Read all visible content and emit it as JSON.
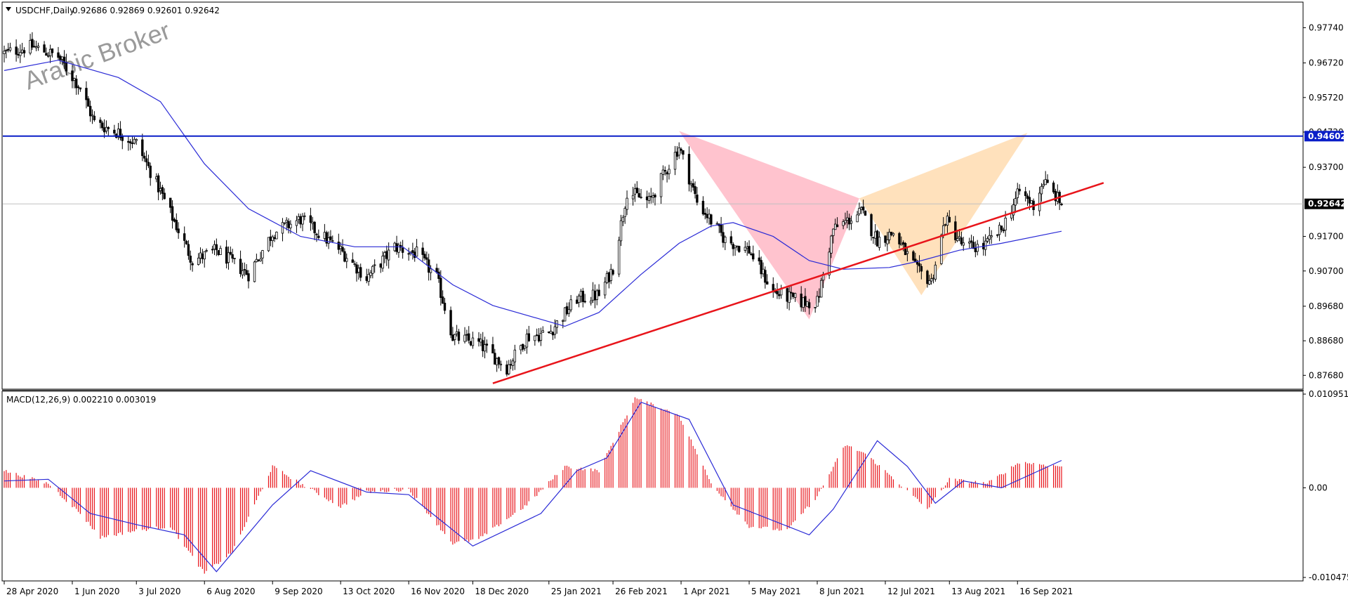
{
  "header": {
    "symbol": "USDCHF,Daily",
    "ohlc": "0.92686 0.92869 0.92601 0.92642"
  },
  "watermark": "Arabic Broker",
  "macd_header": "MACD(12,26,9) 0.002210 0.003019",
  "colors": {
    "background": "#ffffff",
    "candle": "#000000",
    "ma": "#2a2ad6",
    "resistance": "#0a1ec8",
    "trendline": "#e8141a",
    "pattern_bear": "#ffc0cb",
    "pattern_bull": "#ffdfb8",
    "macd_hist": "#e8141a",
    "macd_signal": "#2a2ad6",
    "price_badge": "#000000",
    "level_badge": "#0a1ec8",
    "current_line": "#c0c0c0"
  },
  "chart_data": [
    {
      "type": "candlestick",
      "symbol": "USDCHF",
      "timeframe": "Daily",
      "y_ticks": [
        "0.97740",
        "0.96720",
        "0.95720",
        "0.94720",
        "0.93700",
        "0.91700",
        "0.90700",
        "0.89680",
        "0.88680",
        "0.87680"
      ],
      "ylim": [
        0.8728,
        0.9846
      ],
      "x_ticks": [
        "28 Apr 2020",
        "1 Jun 2020",
        "3 Jul 2020",
        "6 Aug 2020",
        "9 Sep 2020",
        "13 Oct 2020",
        "16 Nov 2020",
        "18 Dec 2020",
        "25 Jan 2021",
        "26 Feb 2021",
        "1 Apr 2021",
        "5 May 2021",
        "8 Jun 2021",
        "12 Jul 2021",
        "13 Aug 2021",
        "16 Sep 2021"
      ],
      "current_price": "0.92642",
      "resistance_level": "0.94602",
      "close_path": [
        {
          "date": "2020-04-28",
          "close": 0.97
        },
        {
          "date": "2020-05-12",
          "close": 0.972
        },
        {
          "date": "2020-05-25",
          "close": 0.969
        },
        {
          "date": "2020-06-05",
          "close": 0.96
        },
        {
          "date": "2020-06-12",
          "close": 0.95
        },
        {
          "date": "2020-06-24",
          "close": 0.947
        },
        {
          "date": "2020-07-03",
          "close": 0.944
        },
        {
          "date": "2020-07-15",
          "close": 0.93
        },
        {
          "date": "2020-07-31",
          "close": 0.91
        },
        {
          "date": "2020-08-12",
          "close": 0.913
        },
        {
          "date": "2020-08-28",
          "close": 0.906
        },
        {
          "date": "2020-09-09",
          "close": 0.918
        },
        {
          "date": "2020-09-23",
          "close": 0.922
        },
        {
          "date": "2020-10-13",
          "close": 0.913
        },
        {
          "date": "2020-10-26",
          "close": 0.905
        },
        {
          "date": "2020-11-09",
          "close": 0.914
        },
        {
          "date": "2020-11-20",
          "close": 0.912
        },
        {
          "date": "2020-11-30",
          "close": 0.905
        },
        {
          "date": "2020-12-08",
          "close": 0.888
        },
        {
          "date": "2020-12-21",
          "close": 0.886
        },
        {
          "date": "2021-01-04",
          "close": 0.879
        },
        {
          "date": "2021-01-14",
          "close": 0.888
        },
        {
          "date": "2021-01-25",
          "close": 0.889
        },
        {
          "date": "2021-02-08",
          "close": 0.899
        },
        {
          "date": "2021-02-19",
          "close": 0.9
        },
        {
          "date": "2021-02-26",
          "close": 0.908
        },
        {
          "date": "2021-03-05",
          "close": 0.93
        },
        {
          "date": "2021-03-16",
          "close": 0.927
        },
        {
          "date": "2021-03-31",
          "close": 0.943
        },
        {
          "date": "2021-04-09",
          "close": 0.927
        },
        {
          "date": "2021-04-23",
          "close": 0.916
        },
        {
          "date": "2021-05-05",
          "close": 0.913
        },
        {
          "date": "2021-05-17",
          "close": 0.901
        },
        {
          "date": "2021-05-31",
          "close": 0.898
        },
        {
          "date": "2021-06-08",
          "close": 0.898
        },
        {
          "date": "2021-06-16",
          "close": 0.919
        },
        {
          "date": "2021-06-30",
          "close": 0.924
        },
        {
          "date": "2021-07-08",
          "close": 0.916
        },
        {
          "date": "2021-07-16",
          "close": 0.918
        },
        {
          "date": "2021-07-28",
          "close": 0.907
        },
        {
          "date": "2021-08-04",
          "close": 0.904
        },
        {
          "date": "2021-08-11",
          "close": 0.922
        },
        {
          "date": "2021-08-20",
          "close": 0.914
        },
        {
          "date": "2021-08-30",
          "close": 0.914
        },
        {
          "date": "2021-09-08",
          "close": 0.919
        },
        {
          "date": "2021-09-17",
          "close": 0.93
        },
        {
          "date": "2021-09-24",
          "close": 0.926
        },
        {
          "date": "2021-09-29",
          "close": 0.933
        },
        {
          "date": "2021-10-08",
          "close": 0.9264
        }
      ],
      "moving_average": [
        {
          "date": "2020-04-28",
          "value": 0.965
        },
        {
          "date": "2020-05-25",
          "value": 0.968
        },
        {
          "date": "2020-06-24",
          "value": 0.963
        },
        {
          "date": "2020-07-15",
          "value": 0.956
        },
        {
          "date": "2020-08-06",
          "value": 0.938
        },
        {
          "date": "2020-08-28",
          "value": 0.925
        },
        {
          "date": "2020-09-23",
          "value": 0.917
        },
        {
          "date": "2020-10-20",
          "value": 0.914
        },
        {
          "date": "2020-11-13",
          "value": 0.914
        },
        {
          "date": "2020-12-08",
          "value": 0.903
        },
        {
          "date": "2020-12-28",
          "value": 0.897
        },
        {
          "date": "2021-01-21",
          "value": 0.893
        },
        {
          "date": "2021-02-02",
          "value": 0.891
        },
        {
          "date": "2021-02-19",
          "value": 0.895
        },
        {
          "date": "2021-03-12",
          "value": 0.906
        },
        {
          "date": "2021-03-31",
          "value": 0.915
        },
        {
          "date": "2021-04-16",
          "value": 0.92
        },
        {
          "date": "2021-04-27",
          "value": 0.921
        },
        {
          "date": "2021-05-17",
          "value": 0.917
        },
        {
          "date": "2021-06-04",
          "value": 0.91
        },
        {
          "date": "2021-06-21",
          "value": 0.9075
        },
        {
          "date": "2021-07-14",
          "value": 0.908
        },
        {
          "date": "2021-07-30",
          "value": 0.91
        },
        {
          "date": "2021-08-18",
          "value": 0.913
        },
        {
          "date": "2021-09-08",
          "value": 0.915
        },
        {
          "date": "2021-10-08",
          "value": 0.9185
        }
      ],
      "trendline": [
        {
          "date": "2020-12-28",
          "value": 0.8745
        },
        {
          "date": "2021-10-29",
          "value": 0.9325
        }
      ],
      "harmonic_patterns": [
        {
          "kind": "bearish",
          "points": [
            {
              "date": "2021-03-31",
              "value": 0.9475
            },
            {
              "date": "2021-06-04",
              "value": 0.893
            },
            {
              "date": "2021-06-29",
              "value": 0.928
            }
          ]
        },
        {
          "kind": "bullish",
          "points": [
            {
              "date": "2021-06-29",
              "value": 0.928
            },
            {
              "date": "2021-07-30",
              "value": 0.9
            },
            {
              "date": "2021-09-21",
              "value": 0.947
            }
          ]
        }
      ]
    },
    {
      "type": "bar",
      "name": "MACD(12,26,9)",
      "main_value": "0.002210",
      "signal_value": "0.003019",
      "y_ticks": [
        "0.010951",
        "0.00",
        "-0.010475"
      ],
      "ylim": [
        -0.0108,
        0.0112
      ],
      "histogram_path": [
        {
          "date": "2020-04-28",
          "value": 0.002
        },
        {
          "date": "2020-05-20",
          "value": 0.0005
        },
        {
          "date": "2020-06-05",
          "value": -0.003
        },
        {
          "date": "2020-06-15",
          "value": -0.0058
        },
        {
          "date": "2020-07-03",
          "value": -0.005
        },
        {
          "date": "2020-07-20",
          "value": -0.0045
        },
        {
          "date": "2020-08-06",
          "value": -0.01
        },
        {
          "date": "2020-08-20",
          "value": -0.0075
        },
        {
          "date": "2020-09-09",
          "value": 0.0025
        },
        {
          "date": "2020-09-23",
          "value": 0.0005
        },
        {
          "date": "2020-10-13",
          "value": -0.0022
        },
        {
          "date": "2020-10-26",
          "value": -0.0005
        },
        {
          "date": "2020-11-16",
          "value": -0.0002
        },
        {
          "date": "2020-12-08",
          "value": -0.0065
        },
        {
          "date": "2020-12-21",
          "value": -0.006
        },
        {
          "date": "2021-01-14",
          "value": -0.002
        },
        {
          "date": "2021-02-02",
          "value": 0.0025
        },
        {
          "date": "2021-02-19",
          "value": 0.002
        },
        {
          "date": "2021-03-09",
          "value": 0.0105
        },
        {
          "date": "2021-03-31",
          "value": 0.0085
        },
        {
          "date": "2021-04-16",
          "value": 0.0005
        },
        {
          "date": "2021-05-05",
          "value": -0.0045
        },
        {
          "date": "2021-05-24",
          "value": -0.005
        },
        {
          "date": "2021-06-08",
          "value": -0.001
        },
        {
          "date": "2021-06-22",
          "value": 0.005
        },
        {
          "date": "2021-07-02",
          "value": 0.004
        },
        {
          "date": "2021-07-19",
          "value": 0.0005
        },
        {
          "date": "2021-08-02",
          "value": -0.0025
        },
        {
          "date": "2021-08-13",
          "value": 0.001
        },
        {
          "date": "2021-09-01",
          "value": 0.0005
        },
        {
          "date": "2021-09-17",
          "value": 0.003
        },
        {
          "date": "2021-10-08",
          "value": 0.0025
        }
      ],
      "signal_path": [
        {
          "date": "2020-04-28",
          "value": 0.0008
        },
        {
          "date": "2020-05-20",
          "value": 0.001
        },
        {
          "date": "2020-06-10",
          "value": -0.003
        },
        {
          "date": "2020-07-03",
          "value": -0.0043
        },
        {
          "date": "2020-07-27",
          "value": -0.0055
        },
        {
          "date": "2020-08-12",
          "value": -0.0098
        },
        {
          "date": "2020-09-09",
          "value": -0.002
        },
        {
          "date": "2020-09-28",
          "value": 0.002
        },
        {
          "date": "2020-10-26",
          "value": -0.0005
        },
        {
          "date": "2020-11-16",
          "value": -0.0008
        },
        {
          "date": "2020-12-18",
          "value": -0.0068
        },
        {
          "date": "2021-01-21",
          "value": -0.003
        },
        {
          "date": "2021-02-08",
          "value": 0.002
        },
        {
          "date": "2021-02-23",
          "value": 0.0035
        },
        {
          "date": "2021-03-12",
          "value": 0.01
        },
        {
          "date": "2021-04-05",
          "value": 0.008
        },
        {
          "date": "2021-04-27",
          "value": -0.002
        },
        {
          "date": "2021-06-04",
          "value": -0.0055
        },
        {
          "date": "2021-06-16",
          "value": -0.0025
        },
        {
          "date": "2021-07-08",
          "value": 0.0055
        },
        {
          "date": "2021-07-23",
          "value": 0.0025
        },
        {
          "date": "2021-08-06",
          "value": -0.0018
        },
        {
          "date": "2021-08-20",
          "value": 0.0008
        },
        {
          "date": "2021-09-08",
          "value": 0.0
        },
        {
          "date": "2021-10-08",
          "value": 0.0032
        }
      ]
    }
  ]
}
